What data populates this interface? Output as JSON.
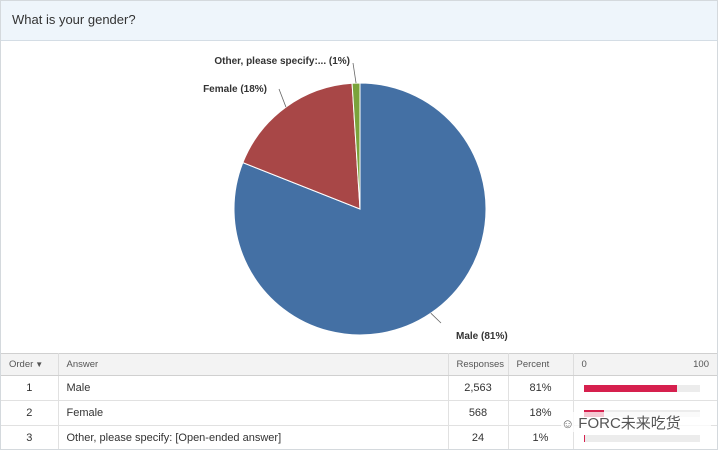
{
  "question": {
    "title": "What is your gender?"
  },
  "chart_data": {
    "type": "pie",
    "categories": [
      "Male",
      "Female",
      "Other, please specify:..."
    ],
    "values": [
      81,
      18,
      1
    ],
    "labels": [
      "Male (81%)",
      "Female (18%)",
      "Other, please specify:... (1%)"
    ],
    "colors": [
      "#4470a4",
      "#a84747",
      "#7aa33b"
    ]
  },
  "table": {
    "headers": {
      "order": "Order",
      "answer": "Answer",
      "responses": "Responses",
      "percent": "Percent",
      "scale_min": "0",
      "scale_max": "100"
    },
    "rows": [
      {
        "order": "1",
        "answer": "Male",
        "responses": "2,563",
        "percent": "81%",
        "percent_value": 81
      },
      {
        "order": "2",
        "answer": "Female",
        "responses": "568",
        "percent": "18%",
        "percent_value": 18
      },
      {
        "order": "3",
        "answer": "Other, please specify: [Open-ended answer]",
        "responses": "24",
        "percent": "1%",
        "percent_value": 1
      }
    ],
    "bar_color": "#d6204e"
  },
  "watermark": {
    "text": "FORC未来吃货"
  }
}
